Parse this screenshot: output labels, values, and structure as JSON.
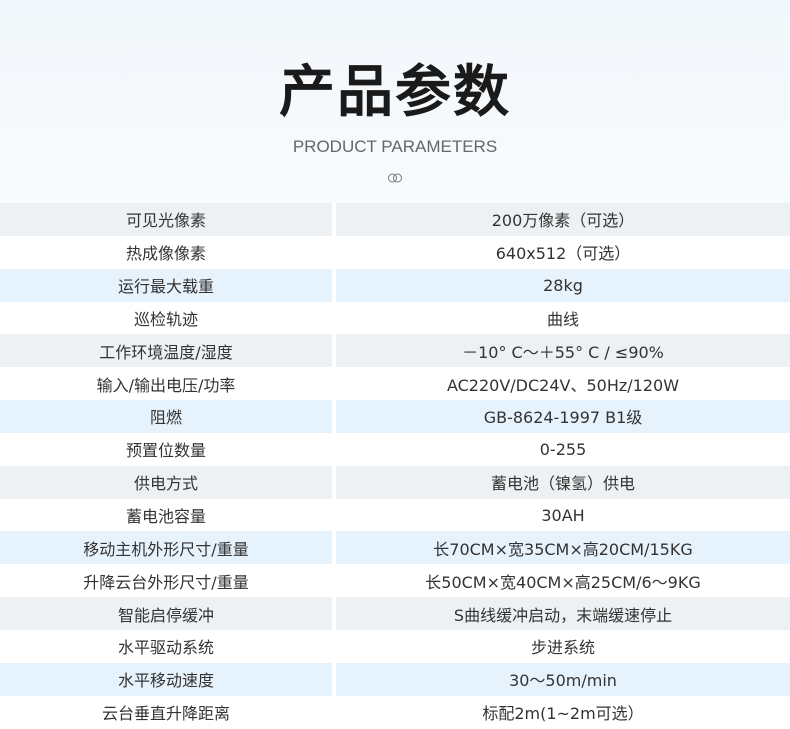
{
  "header": {
    "title": "产品参数",
    "subtitle": "PRODUCT PARAMETERS",
    "decor_icon": "interlocking-rings-icon"
  },
  "colors": {
    "row_gray": "#eef1f3",
    "row_blue": "#e7f3fc",
    "row_white": "#ffffff"
  },
  "params": [
    {
      "label": "可见光像素",
      "value": "200万像素（可选）"
    },
    {
      "label": "热成像像素",
      "value": "640x512（可选）"
    },
    {
      "label": "运行最大载重",
      "value": "28kg"
    },
    {
      "label": "巡检轨迹",
      "value": "曲线"
    },
    {
      "label": "工作环境温度/湿度",
      "value": "－10° C～＋55° C / ≤90%"
    },
    {
      "label": "输入/输出电压/功率",
      "value": "AC220V/DC24V、50Hz/120W"
    },
    {
      "label": "阻燃",
      "value": "GB-8624-1997 B1级"
    },
    {
      "label": "预置位数量",
      "value": "0-255"
    },
    {
      "label": "供电方式",
      "value": "蓄电池（镍氢）供电"
    },
    {
      "label": "蓄电池容量",
      "value": "30AH"
    },
    {
      "label": "移动主机外形尺寸/重量",
      "value": "长70CM×宽35CM×高20CM/15KG"
    },
    {
      "label": "升降云台外形尺寸/重量",
      "value": "长50CM×宽40CM×高25CM/6～9KG"
    },
    {
      "label": "智能启停缓冲",
      "value": "S曲线缓冲启动，末端缓速停止"
    },
    {
      "label": "水平驱动系统",
      "value": "步进系统"
    },
    {
      "label": "水平移动速度",
      "value": "30～50m/min"
    },
    {
      "label": "云台垂直升降距离",
      "value": "标配2m(1~2m可选）"
    }
  ]
}
